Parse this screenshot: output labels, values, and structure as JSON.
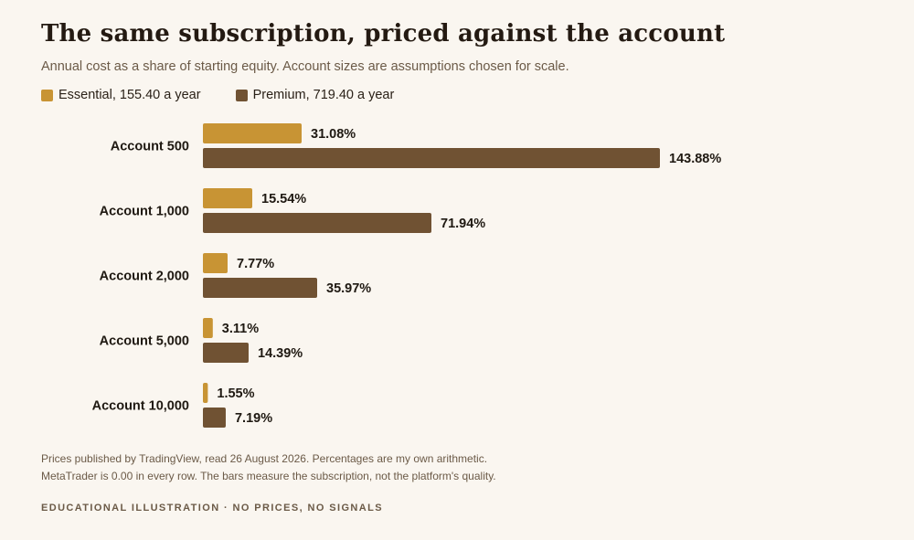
{
  "title": "The same subscription, priced against the account",
  "subtitle": "Annual cost as a share of starting equity. Account sizes are assumptions chosen for scale.",
  "notes": [
    "Prices published by TradingView, read 26 August 2026. Percentages are my own arithmetic.",
    "MetaTrader is 0.00 in every row. The bars measure the subscription, not the platform's quality."
  ],
  "footer": "EDUCATIONAL ILLUSTRATION · NO PRICES, NO SIGNALS",
  "chart_data": {
    "type": "bar",
    "orientation": "horizontal",
    "categories": [
      "Account 500",
      "Account 1,000",
      "Account 2,000",
      "Account 5,000",
      "Account 10,000"
    ],
    "series": [
      {
        "name": "Essential, 155.40 a year",
        "color": "#c89434",
        "values": [
          31.08,
          15.54,
          7.77,
          3.11,
          1.55
        ],
        "labels": [
          "31.08%",
          "15.54%",
          "7.77%",
          "3.11%",
          "1.55%"
        ]
      },
      {
        "name": "Premium, 719.40 a year",
        "color": "#705233",
        "values": [
          143.88,
          71.94,
          35.97,
          14.39,
          7.19
        ],
        "labels": [
          "143.88%",
          "71.94%",
          "35.97%",
          "14.39%",
          "7.19%"
        ]
      }
    ],
    "xlim": [
      0,
      143.88
    ],
    "grid": false,
    "legend": "top-left"
  }
}
